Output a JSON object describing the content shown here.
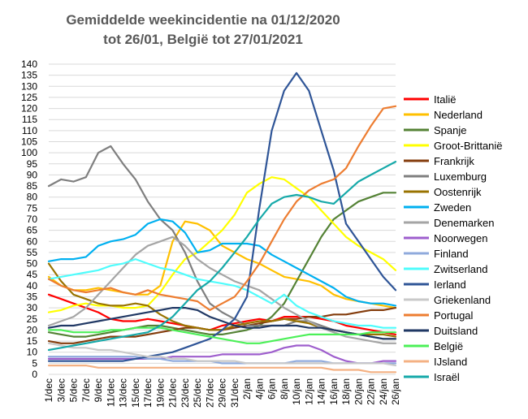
{
  "chart_data": {
    "type": "line",
    "title_lines": [
      "Gemiddelde weekincidentie  na 01/12/2020",
      "tot 26/01, België tot 27/01/2021"
    ],
    "xlabel": "",
    "ylabel": "",
    "ylim": [
      0,
      140
    ],
    "yticks": [
      0,
      5,
      10,
      15,
      20,
      25,
      30,
      35,
      40,
      45,
      50,
      55,
      60,
      65,
      70,
      75,
      80,
      85,
      90,
      95,
      100,
      105,
      110,
      115,
      120,
      125,
      130,
      135,
      140
    ],
    "x_tick_labels": [
      "1/dec",
      "3/dec",
      "5/dec",
      "7/dec",
      "9/dec",
      "11/dec",
      "13/dec",
      "15/dec",
      "17/dec",
      "19/dec",
      "21/dec",
      "23/dec",
      "25/dec",
      "27/dec",
      "29/dec",
      "31/dec",
      "2/jan",
      "4/jan",
      "6/jan",
      "8/jan",
      "10/jan",
      "12/jan",
      "14/jan",
      "16/jan",
      "18/jan",
      "20/jan",
      "22/jan",
      "24/jan",
      "26/jan"
    ],
    "grid": "horizontal",
    "legend_position": "right",
    "series": [
      {
        "name": "Italië",
        "color": "#ff0000",
        "x": [
          0,
          2,
          4,
          6,
          8,
          10,
          12,
          14,
          16,
          18,
          20,
          22,
          24,
          26,
          28,
          30,
          32,
          34,
          36,
          38,
          40,
          42,
          44,
          46,
          48,
          50,
          52,
          54,
          56
        ],
        "y": [
          36,
          34,
          32,
          30,
          28,
          25,
          24,
          24,
          25,
          24,
          23,
          22,
          21,
          20,
          22,
          23,
          24,
          25,
          24,
          26,
          26,
          26,
          25,
          24,
          22,
          21,
          20,
          19,
          18
        ]
      },
      {
        "name": "Nederland",
        "color": "#ffc000",
        "x": [
          0,
          2,
          4,
          6,
          8,
          10,
          12,
          14,
          16,
          18,
          20,
          22,
          24,
          26,
          28,
          30,
          32,
          34,
          36,
          38,
          40,
          42,
          44,
          46,
          48,
          50,
          52,
          54,
          56
        ],
        "y": [
          44,
          40,
          38,
          38,
          39,
          38,
          37,
          36,
          36,
          40,
          60,
          69,
          68,
          65,
          58,
          55,
          52,
          50,
          47,
          44,
          43,
          42,
          40,
          36,
          34,
          33,
          32,
          31,
          30
        ]
      },
      {
        "name": "Spanje",
        "color": "#548235",
        "x": [
          0,
          2,
          4,
          6,
          8,
          10,
          12,
          14,
          16,
          18,
          20,
          22,
          24,
          26,
          28,
          30,
          32,
          34,
          36,
          38,
          40,
          42,
          44,
          46,
          48,
          50,
          52,
          54,
          56
        ],
        "y": [
          19,
          18,
          17,
          17,
          18,
          19,
          20,
          21,
          22,
          22,
          21,
          20,
          19,
          18,
          18,
          19,
          20,
          22,
          26,
          32,
          42,
          52,
          62,
          70,
          74,
          78,
          80,
          82,
          82
        ]
      },
      {
        "name": "Groot-Brittanië",
        "color": "#ffff00",
        "x": [
          0,
          2,
          4,
          6,
          8,
          10,
          12,
          14,
          16,
          18,
          20,
          22,
          24,
          26,
          28,
          30,
          32,
          34,
          36,
          38,
          40,
          42,
          44,
          46,
          48,
          50,
          52,
          54,
          56
        ],
        "y": [
          28,
          29,
          31,
          32,
          31,
          31,
          30,
          30,
          31,
          37,
          45,
          52,
          55,
          60,
          65,
          72,
          82,
          86,
          89,
          88,
          84,
          80,
          74,
          68,
          62,
          58,
          55,
          52,
          47
        ]
      },
      {
        "name": "Frankrijk",
        "color": "#843c0c",
        "x": [
          0,
          2,
          4,
          6,
          8,
          10,
          12,
          14,
          16,
          18,
          20,
          22,
          24,
          26,
          28,
          30,
          32,
          34,
          36,
          38,
          40,
          42,
          44,
          46,
          48,
          50,
          52,
          54,
          56
        ],
        "y": [
          15,
          14,
          14,
          15,
          16,
          17,
          17,
          17,
          18,
          19,
          20,
          21,
          21,
          20,
          20,
          21,
          22,
          23,
          24,
          25,
          25,
          26,
          26,
          27,
          27,
          28,
          29,
          29,
          30
        ]
      },
      {
        "name": "Luxemburg",
        "color": "#7f7f7f",
        "x": [
          0,
          2,
          4,
          6,
          8,
          10,
          12,
          14,
          16,
          18,
          20,
          22,
          24,
          26,
          28,
          30,
          32,
          34,
          36,
          38,
          40,
          42,
          44,
          46,
          48,
          50,
          52,
          54,
          56
        ],
        "y": [
          85,
          88,
          87,
          89,
          100,
          103,
          95,
          88,
          78,
          70,
          65,
          55,
          42,
          32,
          28,
          25,
          22,
          22,
          22,
          22,
          24,
          24,
          22,
          20,
          19,
          18,
          17,
          16,
          16
        ]
      },
      {
        "name": "Oostenrijk",
        "color": "#997300",
        "x": [
          0,
          2,
          4,
          6,
          8,
          10,
          12,
          14,
          16,
          18,
          20,
          22,
          24,
          26,
          28,
          30,
          32,
          34,
          36,
          38,
          40,
          42,
          44,
          46,
          48,
          50,
          52,
          54,
          56
        ],
        "y": [
          50,
          42,
          36,
          34,
          32,
          31,
          31,
          32,
          31,
          27,
          24,
          22,
          21,
          20,
          20,
          22,
          23,
          24,
          24,
          25,
          24,
          23,
          21,
          20,
          19,
          18,
          18,
          18,
          17
        ]
      },
      {
        "name": "Zweden",
        "color": "#00b0f0",
        "x": [
          0,
          2,
          4,
          6,
          8,
          10,
          12,
          14,
          16,
          18,
          20,
          22,
          24,
          26,
          28,
          30,
          32,
          34,
          36,
          38,
          40,
          42,
          44,
          46,
          48,
          50,
          52,
          54,
          56
        ],
        "y": [
          51,
          52,
          52,
          53,
          58,
          60,
          61,
          63,
          68,
          70,
          69,
          64,
          55,
          56,
          59,
          59,
          59,
          58,
          54,
          51,
          48,
          45,
          42,
          39,
          35,
          33,
          32,
          32,
          31
        ]
      },
      {
        "name": "Denemarken",
        "color": "#a5a5a5",
        "x": [
          0,
          2,
          4,
          6,
          8,
          10,
          12,
          14,
          16,
          18,
          20,
          22,
          24,
          26,
          28,
          30,
          32,
          34,
          36,
          38,
          40,
          42,
          44,
          46,
          48,
          50,
          52,
          54,
          56
        ],
        "y": [
          22,
          24,
          26,
          30,
          36,
          42,
          48,
          54,
          58,
          60,
          62,
          58,
          52,
          48,
          45,
          42,
          40,
          38,
          34,
          30,
          27,
          24,
          21,
          19,
          17,
          16,
          15,
          14,
          14
        ]
      },
      {
        "name": "Noorwegen",
        "color": "#9e5ecd",
        "x": [
          0,
          2,
          4,
          6,
          8,
          10,
          12,
          14,
          16,
          18,
          20,
          22,
          24,
          26,
          28,
          30,
          32,
          34,
          36,
          38,
          40,
          42,
          44,
          46,
          48,
          50,
          52,
          54,
          56
        ],
        "y": [
          7,
          7,
          7,
          7,
          7,
          7,
          7,
          7,
          7,
          7,
          8,
          8,
          8,
          8,
          9,
          9,
          9,
          9,
          10,
          12,
          13,
          13,
          11,
          8,
          6,
          5,
          5,
          6,
          6
        ]
      },
      {
        "name": "Finland",
        "color": "#8faadc",
        "x": [
          0,
          2,
          4,
          6,
          8,
          10,
          12,
          14,
          16,
          18,
          20,
          22,
          24,
          26,
          28,
          30,
          32,
          34,
          36,
          38,
          40,
          42,
          44,
          46,
          48,
          50,
          52,
          54,
          56
        ],
        "y": [
          8,
          8,
          8,
          8,
          8,
          8,
          8,
          8,
          7,
          7,
          6,
          6,
          6,
          6,
          5,
          5,
          5,
          5,
          5,
          5,
          6,
          6,
          6,
          5,
          5,
          5,
          5,
          5,
          5
        ]
      },
      {
        "name": "Zwitserland",
        "color": "#4ffcfc",
        "x": [
          0,
          2,
          4,
          6,
          8,
          10,
          12,
          14,
          16,
          18,
          20,
          22,
          24,
          26,
          28,
          30,
          32,
          34,
          36,
          38,
          40,
          42,
          44,
          46,
          48,
          50,
          52,
          54,
          56
        ],
        "y": [
          43,
          44,
          45,
          46,
          47,
          49,
          50,
          52,
          50,
          48,
          47,
          45,
          43,
          42,
          41,
          40,
          38,
          35,
          32,
          36,
          31,
          28,
          26,
          24,
          23,
          22,
          22,
          21,
          21
        ]
      },
      {
        "name": "Ierland",
        "color": "#2f5597",
        "x": [
          0,
          2,
          4,
          6,
          8,
          10,
          12,
          14,
          16,
          18,
          20,
          22,
          24,
          26,
          28,
          30,
          32,
          34,
          36,
          38,
          40,
          42,
          44,
          46,
          48,
          50,
          52,
          54,
          56
        ],
        "y": [
          6,
          6,
          6,
          6,
          6,
          6,
          6,
          7,
          8,
          9,
          10,
          12,
          14,
          16,
          20,
          25,
          35,
          75,
          110,
          128,
          136,
          128,
          110,
          92,
          68,
          60,
          52,
          44,
          38
        ]
      },
      {
        "name": "Griekenland",
        "color": "#c9c9c9",
        "x": [
          0,
          2,
          4,
          6,
          8,
          10,
          12,
          14,
          16,
          18,
          20,
          22,
          24,
          26,
          28,
          30,
          32,
          34,
          36,
          38,
          40,
          42,
          44,
          46,
          48,
          50,
          52,
          54,
          56
        ],
        "y": [
          14,
          13,
          12,
          12,
          11,
          11,
          10,
          9,
          8,
          8,
          7,
          7,
          6,
          6,
          6,
          6,
          5,
          5,
          5,
          5,
          5,
          5,
          5,
          5,
          5,
          5,
          5,
          5,
          4
        ]
      },
      {
        "name": "Portugal",
        "color": "#ed7d31",
        "x": [
          0,
          2,
          4,
          6,
          8,
          10,
          12,
          14,
          16,
          18,
          20,
          22,
          24,
          26,
          28,
          30,
          32,
          34,
          36,
          38,
          40,
          42,
          44,
          46,
          48,
          50,
          52,
          54,
          56
        ],
        "y": [
          43,
          40,
          38,
          37,
          38,
          39,
          37,
          36,
          38,
          36,
          35,
          34,
          33,
          29,
          32,
          35,
          42,
          50,
          60,
          70,
          78,
          83,
          86,
          88,
          93,
          103,
          112,
          120,
          121
        ]
      },
      {
        "name": "Duitsland",
        "color": "#203864",
        "x": [
          0,
          2,
          4,
          6,
          8,
          10,
          12,
          14,
          16,
          18,
          20,
          22,
          24,
          26,
          28,
          30,
          32,
          34,
          36,
          38,
          40,
          42,
          44,
          46,
          48,
          50,
          52,
          54,
          56
        ],
        "y": [
          21,
          22,
          22,
          23,
          24,
          25,
          26,
          27,
          28,
          29,
          30,
          30,
          29,
          26,
          24,
          22,
          21,
          21,
          22,
          22,
          22,
          21,
          21,
          20,
          19,
          18,
          17,
          16,
          16
        ]
      },
      {
        "name": "België",
        "color": "#4cf058",
        "x": [
          0,
          2,
          4,
          6,
          8,
          10,
          12,
          14,
          16,
          18,
          20,
          22,
          24,
          26,
          28,
          30,
          32,
          34,
          36,
          38,
          40,
          42,
          44,
          46,
          48,
          50,
          52,
          54,
          56
        ],
        "y": [
          20,
          20,
          19,
          19,
          19,
          20,
          20,
          21,
          21,
          21,
          20,
          19,
          18,
          17,
          16,
          15,
          14,
          14,
          15,
          16,
          17,
          18,
          18,
          18,
          18,
          18,
          19,
          19,
          19
        ]
      },
      {
        "name": "IJsland",
        "color": "#f4b183",
        "x": [
          0,
          2,
          4,
          6,
          8,
          10,
          12,
          14,
          16,
          18,
          20,
          22,
          24,
          26,
          28,
          30,
          32,
          34,
          36,
          38,
          40,
          42,
          44,
          46,
          48,
          50,
          52,
          54,
          56
        ],
        "y": [
          4,
          4,
          4,
          4,
          3,
          3,
          3,
          3,
          3,
          3,
          3,
          3,
          3,
          3,
          3,
          3,
          3,
          3,
          3,
          3,
          3,
          3,
          3,
          2,
          2,
          2,
          1,
          1,
          1
        ]
      },
      {
        "name": "Israël",
        "color": "#16a9a9",
        "x": [
          0,
          2,
          4,
          6,
          8,
          10,
          12,
          14,
          16,
          18,
          20,
          22,
          24,
          26,
          28,
          30,
          32,
          34,
          36,
          38,
          40,
          42,
          44,
          46,
          48,
          50,
          52,
          54,
          56
        ],
        "y": [
          11,
          12,
          13,
          14,
          15,
          16,
          17,
          18,
          19,
          22,
          26,
          32,
          38,
          42,
          48,
          55,
          62,
          70,
          77,
          80,
          81,
          80,
          78,
          77,
          82,
          87,
          90,
          93,
          96
        ]
      }
    ]
  }
}
